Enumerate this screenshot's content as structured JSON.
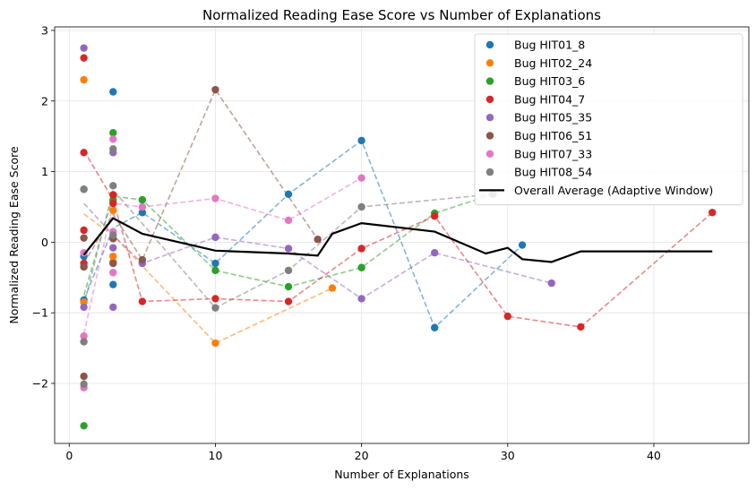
{
  "chart_data": {
    "type": "scatter",
    "title": "Normalized Reading Ease Score vs Number of Explanations",
    "xlabel": "Number of Explanations",
    "ylabel": "Normalized Reading Ease Score",
    "xlim": [
      -1,
      46.5
    ],
    "ylim": [
      -2.85,
      3.05
    ],
    "xticks": [
      0,
      10,
      20,
      30,
      40
    ],
    "yticks": [
      -2,
      -1,
      0,
      1,
      2,
      3
    ],
    "grid": true,
    "legend_position": "top-right",
    "series": [
      {
        "name": "Bug HIT01_8",
        "color": "#1f77b4",
        "points": [
          [
            1,
            -0.82
          ],
          [
            1,
            -0.2
          ],
          [
            3,
            2.13
          ],
          [
            3,
            -0.6
          ],
          [
            5,
            0.42
          ],
          [
            10,
            -0.3
          ],
          [
            15,
            0.68
          ],
          [
            20,
            1.44
          ],
          [
            25,
            -1.21
          ],
          [
            31,
            -0.04
          ]
        ],
        "trend": [
          [
            1,
            -0.82
          ],
          [
            3,
            0.2
          ],
          [
            5,
            0.42
          ],
          [
            10,
            -0.3
          ],
          [
            15,
            0.68
          ],
          [
            20,
            1.44
          ],
          [
            25,
            -1.21
          ],
          [
            31,
            -0.04
          ]
        ]
      },
      {
        "name": "Bug HIT02_24",
        "color": "#ff7f0e",
        "points": [
          [
            1,
            2.3
          ],
          [
            1,
            -0.85
          ],
          [
            3,
            0.45
          ],
          [
            3,
            -0.2
          ],
          [
            3,
            -0.28
          ],
          [
            10,
            -1.43
          ],
          [
            18,
            -0.65
          ]
        ],
        "trend": [
          [
            1,
            0.4
          ],
          [
            3,
            0.1
          ],
          [
            10,
            -1.43
          ],
          [
            18,
            -0.65
          ]
        ]
      },
      {
        "name": "Bug HIT03_6",
        "color": "#2ca02c",
        "points": [
          [
            1,
            -2.6
          ],
          [
            1,
            0.75
          ],
          [
            1,
            -0.35
          ],
          [
            3,
            1.55
          ],
          [
            3,
            0.6
          ],
          [
            5,
            0.6
          ],
          [
            10,
            -0.4
          ],
          [
            15,
            -0.63
          ],
          [
            20,
            -0.36
          ],
          [
            25,
            0.41
          ],
          [
            29,
            0.68
          ]
        ],
        "trend": [
          [
            1,
            -0.75
          ],
          [
            3,
            0.65
          ],
          [
            5,
            0.6
          ],
          [
            10,
            -0.4
          ],
          [
            15,
            -0.63
          ],
          [
            20,
            -0.36
          ],
          [
            25,
            0.41
          ],
          [
            29,
            0.68
          ]
        ]
      },
      {
        "name": "Bug HIT04_7",
        "color": "#d62728",
        "points": [
          [
            1,
            2.61
          ],
          [
            1,
            1.27
          ],
          [
            1,
            0.17
          ],
          [
            1,
            -0.3
          ],
          [
            3,
            0.67
          ],
          [
            3,
            0.55
          ],
          [
            5,
            -0.84
          ],
          [
            10,
            -0.8
          ],
          [
            15,
            -0.84
          ],
          [
            20,
            -0.09
          ],
          [
            25,
            0.37
          ],
          [
            30,
            -1.05
          ],
          [
            35,
            -1.2
          ],
          [
            44,
            0.42
          ]
        ],
        "trend": [
          [
            1,
            1.3
          ],
          [
            3,
            0.6
          ],
          [
            5,
            -0.84
          ],
          [
            10,
            -0.8
          ],
          [
            15,
            -0.84
          ],
          [
            20,
            -0.09
          ],
          [
            25,
            0.37
          ],
          [
            30,
            -1.05
          ],
          [
            35,
            -1.2
          ],
          [
            44,
            0.42
          ]
        ]
      },
      {
        "name": "Bug HIT05_35",
        "color": "#9467bd",
        "points": [
          [
            1,
            2.75
          ],
          [
            1,
            -0.92
          ],
          [
            3,
            1.27
          ],
          [
            3,
            -0.08
          ],
          [
            3,
            -0.92
          ],
          [
            5,
            -0.3
          ],
          [
            10,
            0.07
          ],
          [
            15,
            -0.09
          ],
          [
            20,
            -0.8
          ],
          [
            25,
            -0.15
          ],
          [
            33,
            -0.58
          ]
        ],
        "trend": [
          [
            1,
            0.55
          ],
          [
            3,
            0.1
          ],
          [
            5,
            -0.3
          ],
          [
            10,
            0.07
          ],
          [
            15,
            -0.09
          ],
          [
            20,
            -0.8
          ],
          [
            25,
            -0.15
          ],
          [
            33,
            -0.58
          ]
        ]
      },
      {
        "name": "Bug HIT06_51",
        "color": "#8c564b",
        "points": [
          [
            1,
            0.06
          ],
          [
            1,
            -0.35
          ],
          [
            1,
            -1.9
          ],
          [
            3,
            0.05
          ],
          [
            3,
            -0.3
          ],
          [
            5,
            -0.25
          ],
          [
            10,
            2.16
          ],
          [
            17,
            0.04
          ]
        ],
        "trend": [
          [
            1,
            -0.3
          ],
          [
            3,
            0.4
          ],
          [
            5,
            -0.25
          ],
          [
            10,
            2.16
          ],
          [
            17,
            0.04
          ]
        ]
      },
      {
        "name": "Bug HIT07_33",
        "color": "#e377c2",
        "points": [
          [
            1,
            -0.15
          ],
          [
            1,
            -1.33
          ],
          [
            1,
            -2.06
          ],
          [
            3,
            1.46
          ],
          [
            3,
            0.15
          ],
          [
            3,
            -0.43
          ],
          [
            5,
            0.5
          ],
          [
            10,
            0.62
          ],
          [
            15,
            0.31
          ],
          [
            20,
            0.91
          ]
        ],
        "trend": [
          [
            1,
            -1.3
          ],
          [
            3,
            0.55
          ],
          [
            5,
            0.5
          ],
          [
            10,
            0.62
          ],
          [
            15,
            0.31
          ],
          [
            20,
            0.91
          ]
        ]
      },
      {
        "name": "Bug HIT08_54",
        "color": "#7f7f7f",
        "points": [
          [
            1,
            0.75
          ],
          [
            1,
            -1.41
          ],
          [
            1,
            -2.01
          ],
          [
            3,
            1.32
          ],
          [
            3,
            0.8
          ],
          [
            3,
            0.1
          ],
          [
            10,
            -0.93
          ],
          [
            15,
            -0.4
          ],
          [
            20,
            0.5
          ],
          [
            29,
            0.68
          ]
        ],
        "trend": [
          [
            1,
            -0.89
          ],
          [
            3,
            0.74
          ],
          [
            10,
            -0.93
          ],
          [
            15,
            -0.4
          ],
          [
            20,
            0.5
          ],
          [
            29,
            0.68
          ]
        ]
      }
    ],
    "average": {
      "name": "Overall Average (Adaptive Window)",
      "color": "#000000",
      "points": [
        [
          1,
          -0.18
        ],
        [
          3,
          0.34
        ],
        [
          5,
          0.12
        ],
        [
          10,
          -0.12
        ],
        [
          15,
          -0.16
        ],
        [
          17,
          -0.19
        ],
        [
          18,
          0.12
        ],
        [
          20,
          0.27
        ],
        [
          25,
          0.15
        ],
        [
          28.5,
          -0.16
        ],
        [
          30,
          -0.08
        ],
        [
          31,
          -0.24
        ],
        [
          33,
          -0.28
        ],
        [
          35,
          -0.13
        ],
        [
          44,
          -0.13
        ]
      ]
    }
  }
}
